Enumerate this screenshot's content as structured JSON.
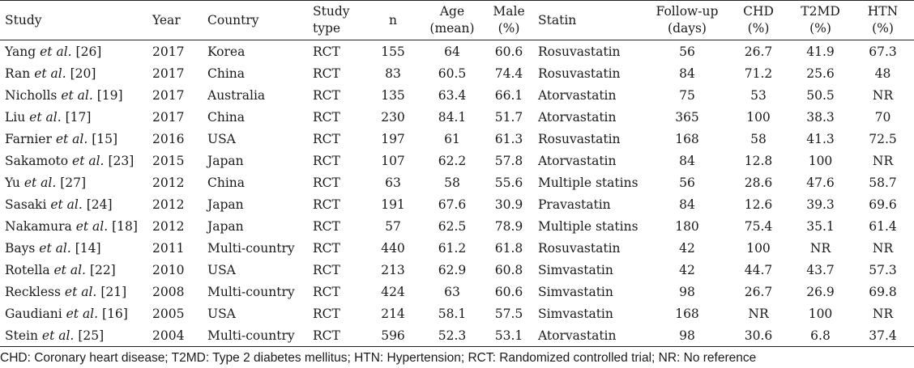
{
  "headers": {
    "study": "Study",
    "year": "Year",
    "country": "Country",
    "study_type": [
      "Study",
      "type"
    ],
    "n": "n",
    "age": [
      "Age",
      "(mean)"
    ],
    "male": [
      "Male",
      "(%)"
    ],
    "statin": "Statin",
    "follow_up": [
      "Follow-up",
      "(days)"
    ],
    "chd": [
      "CHD",
      "(%)"
    ],
    "t2md": [
      "T2MD",
      "(%)"
    ],
    "htn": [
      "HTN",
      "(%)"
    ]
  },
  "rows": [
    {
      "author": "Yang",
      "etal": "et al.",
      "ref": "[26]",
      "year": "2017",
      "country": "Korea",
      "type": "RCT",
      "n": "155",
      "age": "64",
      "male": "60.6",
      "statin": "Rosuvastatin",
      "followup": "56",
      "chd": "26.7",
      "t2md": "41.9",
      "htn": "67.3"
    },
    {
      "author": "Ran",
      "etal": "et al.",
      "ref": "[20]",
      "year": "2017",
      "country": "China",
      "type": "RCT",
      "n": "83",
      "age": "60.5",
      "male": "74.4",
      "statin": "Rosuvastatin",
      "followup": "84",
      "chd": "71.2",
      "t2md": "25.6",
      "htn": "48"
    },
    {
      "author": "Nicholls",
      "etal": "et al.",
      "ref": "[19]",
      "year": "2017",
      "country": "Australia",
      "type": "RCT",
      "n": "135",
      "age": "63.4",
      "male": "66.1",
      "statin": "Atorvastatin",
      "followup": "75",
      "chd": "53",
      "t2md": "50.5",
      "htn": "NR"
    },
    {
      "author": "Liu",
      "etal": "et al.",
      "ref": "[17]",
      "year": "2017",
      "country": "China",
      "type": "RCT",
      "n": "230",
      "age": "84.1",
      "male": "51.7",
      "statin": "Atorvastatin",
      "followup": "365",
      "chd": "100",
      "t2md": "38.3",
      "htn": "70"
    },
    {
      "author": "Farnier",
      "etal": "et al.",
      "ref": "[15]",
      "year": "2016",
      "country": "USA",
      "type": "RCT",
      "n": "197",
      "age": "61",
      "male": "61.3",
      "statin": "Rosuvastatin",
      "followup": "168",
      "chd": "58",
      "t2md": "41.3",
      "htn": "72.5"
    },
    {
      "author": "Sakamoto",
      "etal": "et al.",
      "ref": "[23]",
      "year": "2015",
      "country": "Japan",
      "type": "RCT",
      "n": "107",
      "age": "62.2",
      "male": "57.8",
      "statin": "Atorvastatin",
      "followup": "84",
      "chd": "12.8",
      "t2md": "100",
      "htn": "NR"
    },
    {
      "author": "Yu",
      "etal": "et al.",
      "ref": "[27]",
      "year": "2012",
      "country": "China",
      "type": "RCT",
      "n": "63",
      "age": "58",
      "male": "55.6",
      "statin": "Multiple statins",
      "followup": "56",
      "chd": "28.6",
      "t2md": "47.6",
      "htn": "58.7"
    },
    {
      "author": "Sasaki",
      "etal": "et al.",
      "ref": "[24]",
      "year": "2012",
      "country": "Japan",
      "type": "RCT",
      "n": "191",
      "age": "67.6",
      "male": "30.9",
      "statin": "Pravastatin",
      "followup": "84",
      "chd": "12.6",
      "t2md": "39.3",
      "htn": "69.6"
    },
    {
      "author": "Nakamura",
      "etal": "et al.",
      "ref": "[18]",
      "year": "2012",
      "country": "Japan",
      "type": "RCT",
      "n": "57",
      "age": "62.5",
      "male": "78.9",
      "statin": "Multiple statins",
      "followup": "180",
      "chd": "75.4",
      "t2md": "35.1",
      "htn": "61.4"
    },
    {
      "author": "Bays",
      "etal": "et al.",
      "ref": "[14]",
      "year": "2011",
      "country": "Multi-country",
      "type": "RCT",
      "n": "440",
      "age": "61.2",
      "male": "61.8",
      "statin": "Rosuvastatin",
      "followup": "42",
      "chd": "100",
      "t2md": "NR",
      "htn": "NR"
    },
    {
      "author": "Rotella",
      "etal": "et al.",
      "ref": "[22]",
      "year": "2010",
      "country": "USA",
      "type": "RCT",
      "n": "213",
      "age": "62.9",
      "male": "60.8",
      "statin": "Simvastatin",
      "followup": "42",
      "chd": "44.7",
      "t2md": "43.7",
      "htn": "57.3"
    },
    {
      "author": "Reckless",
      "etal": "et al.",
      "ref": "[21]",
      "year": "2008",
      "country": "Multi-country",
      "type": "RCT",
      "n": "424",
      "age": "63",
      "male": "60.6",
      "statin": "Simvastatin",
      "followup": "98",
      "chd": "26.7",
      "t2md": "26.9",
      "htn": "69.8"
    },
    {
      "author": "Gaudiani",
      "etal": "et al.",
      "ref": "[16]",
      "year": "2005",
      "country": "USA",
      "type": "RCT",
      "n": "214",
      "age": "58.1",
      "male": "57.5",
      "statin": "Simvastatin",
      "followup": "168",
      "chd": "NR",
      "t2md": "100",
      "htn": "NR"
    },
    {
      "author": "Stein",
      "etal": "et al.",
      "ref": "[25]",
      "year": "2004",
      "country": "Multi-country",
      "type": "RCT",
      "n": "596",
      "age": "52.3",
      "male": "53.1",
      "statin": "Atorvastatin",
      "followup": "98",
      "chd": "30.6",
      "t2md": "6.8",
      "htn": "37.4"
    }
  ],
  "footnote": "CHD: Coronary heart disease; T2MD: Type 2 diabetes mellitus; HTN: Hypertension; RCT: Randomized controlled trial; NR: No reference"
}
